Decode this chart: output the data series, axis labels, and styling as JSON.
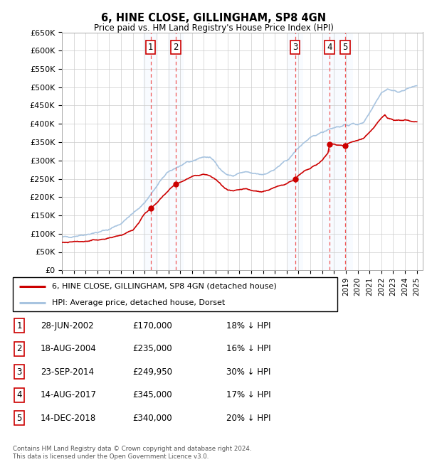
{
  "title": "6, HINE CLOSE, GILLINGHAM, SP8 4GN",
  "subtitle": "Price paid vs. HM Land Registry's House Price Index (HPI)",
  "ylabel_ticks": [
    "£0",
    "£50K",
    "£100K",
    "£150K",
    "£200K",
    "£250K",
    "£300K",
    "£350K",
    "£400K",
    "£450K",
    "£500K",
    "£550K",
    "£600K",
    "£650K"
  ],
  "ylim": [
    0,
    650000
  ],
  "ytick_values": [
    0,
    50000,
    100000,
    150000,
    200000,
    250000,
    300000,
    350000,
    400000,
    450000,
    500000,
    550000,
    600000,
    650000
  ],
  "xlim_start": 1995.0,
  "xlim_end": 2025.5,
  "sale_points": [
    {
      "num": 1,
      "year": 2002.5,
      "price": 170000
    },
    {
      "num": 2,
      "year": 2004.62,
      "price": 235000
    },
    {
      "num": 3,
      "year": 2014.72,
      "price": 249950
    },
    {
      "num": 4,
      "year": 2017.62,
      "price": 345000
    },
    {
      "num": 5,
      "year": 2018.95,
      "price": 340000
    }
  ],
  "legend_line1": "6, HINE CLOSE, GILLINGHAM, SP8 4GN (detached house)",
  "legend_line2": "HPI: Average price, detached house, Dorset",
  "footer": "Contains HM Land Registry data © Crown copyright and database right 2024.\nThis data is licensed under the Open Government Licence v3.0.",
  "table_rows": [
    {
      "num": 1,
      "date": "28-JUN-2002",
      "price": "£170,000",
      "pct": "18% ↓ HPI"
    },
    {
      "num": 2,
      "date": "18-AUG-2004",
      "price": "£235,000",
      "pct": "16% ↓ HPI"
    },
    {
      "num": 3,
      "date": "23-SEP-2014",
      "price": "£249,950",
      "pct": "30% ↓ HPI"
    },
    {
      "num": 4,
      "date": "14-AUG-2017",
      "price": "£345,000",
      "pct": "17% ↓ HPI"
    },
    {
      "num": 5,
      "date": "14-DEC-2018",
      "price": "£340,000",
      "pct": "20% ↓ HPI"
    }
  ],
  "hpi_color": "#a8c4e0",
  "sale_color": "#cc0000",
  "dashed_color": "#ee4444",
  "grid_color": "#cccccc",
  "highlight_color": "#ddeeff"
}
